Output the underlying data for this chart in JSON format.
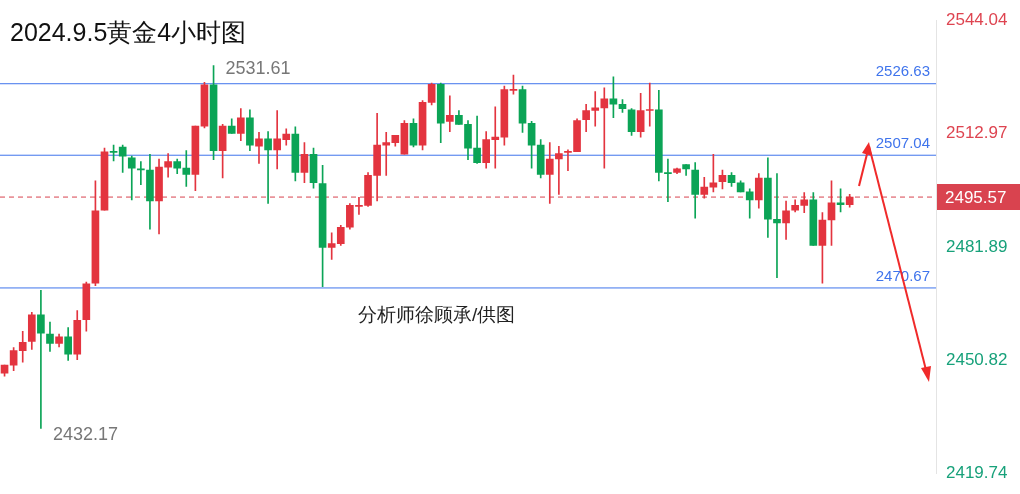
{
  "chart_data": {
    "type": "candlestick",
    "title": "2024.9.5黄金4小时图",
    "categories": [
      null,
      null,
      null,
      null,
      null,
      null,
      null,
      null,
      null,
      null,
      null,
      null,
      null,
      null,
      null,
      null,
      null,
      null,
      null,
      null,
      null,
      null,
      null,
      null,
      null,
      null,
      null,
      null,
      null,
      null,
      null,
      null,
      null,
      null,
      null,
      null,
      null,
      null,
      null,
      null,
      null,
      null,
      null,
      null,
      null,
      null,
      null,
      null,
      null,
      null,
      null,
      null,
      null,
      null,
      null,
      null,
      null,
      null,
      null,
      null,
      null,
      null,
      null,
      null,
      null,
      null,
      null,
      null,
      null,
      null,
      null,
      null,
      null,
      null,
      null,
      null,
      null,
      null,
      null,
      null,
      null,
      null,
      null,
      null,
      null,
      null,
      null,
      null,
      null,
      null,
      null,
      null,
      null,
      null,
      null,
      null,
      null,
      null,
      null,
      null,
      null,
      null,
      null
    ],
    "ohlc": [
      [
        2447.3,
        2449.5,
        2446.5,
        2449.5
      ],
      [
        2449.5,
        2454.3,
        2448.0,
        2453.5
      ],
      [
        2453.5,
        2458.8,
        2450.3,
        2455.8
      ],
      [
        2456.0,
        2464.0,
        2453.8,
        2463.3
      ],
      [
        2463.3,
        2470.0,
        2432.17,
        2458.3
      ],
      [
        2458.0,
        2461.3,
        2453.3,
        2455.5
      ],
      [
        2455.5,
        2458.0,
        2454.5,
        2457.3
      ],
      [
        2457.3,
        2459.8,
        2450.8,
        2452.5
      ],
      [
        2452.5,
        2464.5,
        2451.0,
        2461.8
      ],
      [
        2462.0,
        2472.3,
        2458.8,
        2471.8
      ],
      [
        2472.0,
        2500.0,
        2471.3,
        2491.8
      ],
      [
        2492.0,
        2509.0,
        2492.0,
        2508.0
      ],
      [
        2508.0,
        2509.8,
        2505.5,
        2507.8
      ],
      [
        2509.3,
        2509.8,
        2502.3,
        2506.8
      ],
      [
        2506.3,
        2506.8,
        2494.8,
        2503.5
      ],
      [
        2503.3,
        2505.3,
        2499.0,
        2503.0
      ],
      [
        2503.0,
        2507.3,
        2486.8,
        2494.5
      ],
      [
        2494.5,
        2506.0,
        2485.5,
        2503.8
      ],
      [
        2503.8,
        2507.5,
        2501.0,
        2505.3
      ],
      [
        2505.3,
        2506.0,
        2502.0,
        2503.5
      ],
      [
        2503.5,
        2508.3,
        2498.5,
        2501.8
      ],
      [
        2501.8,
        2515.0,
        2497.3,
        2515.0
      ],
      [
        2515.0,
        2527.0,
        2514.5,
        2526.3
      ],
      [
        2526.3,
        2531.61,
        2505.8,
        2508.3
      ],
      [
        2508.3,
        2515.5,
        2500.8,
        2515.0
      ],
      [
        2515.0,
        2517.0,
        2513.0,
        2513.0
      ],
      [
        2513.0,
        2519.8,
        2511.0,
        2517.3
      ],
      [
        2517.3,
        2519.5,
        2508.3,
        2509.8
      ],
      [
        2509.5,
        2513.3,
        2504.8,
        2511.5
      ],
      [
        2511.5,
        2513.5,
        2493.8,
        2508.5
      ],
      [
        2508.5,
        2519.3,
        2503.3,
        2511.5
      ],
      [
        2511.3,
        2514.3,
        2509.8,
        2512.8
      ],
      [
        2512.8,
        2514.8,
        2500.0,
        2502.3
      ],
      [
        2502.3,
        2510.5,
        2499.5,
        2507.3
      ],
      [
        2507.3,
        2509.0,
        2498.0,
        2499.5
      ],
      [
        2499.3,
        2504.3,
        2471.0,
        2481.8
      ],
      [
        2481.8,
        2485.8,
        2478.5,
        2482.8
      ],
      [
        2482.8,
        2487.8,
        2482.3,
        2487.3
      ],
      [
        2487.3,
        2493.8,
        2486.8,
        2493.3
      ],
      [
        2493.0,
        2495.5,
        2490.8,
        2493.3
      ],
      [
        2493.3,
        2502.3,
        2493.0,
        2501.5
      ],
      [
        2501.5,
        2518.5,
        2494.5,
        2509.8
      ],
      [
        2509.8,
        2513.3,
        2501.5,
        2510.5
      ],
      [
        2510.5,
        2512.5,
        2509.5,
        2512.5
      ],
      [
        2507.3,
        2516.5,
        2507.3,
        2515.8
      ],
      [
        2515.8,
        2517.0,
        2509.3,
        2509.8
      ],
      [
        2509.8,
        2522.0,
        2508.5,
        2521.5
      ],
      [
        2521.5,
        2526.8,
        2520.8,
        2526.5
      ],
      [
        2526.5,
        2526.8,
        2510.5,
        2515.8
      ],
      [
        2516.3,
        2523.3,
        2513.5,
        2518.0
      ],
      [
        2518.0,
        2519.3,
        2515.5,
        2515.5
      ],
      [
        2515.5,
        2516.5,
        2505.8,
        2509.0
      ],
      [
        2509.0,
        2517.8,
        2504.8,
        2505.0
      ],
      [
        2505.0,
        2513.5,
        2503.5,
        2511.3
      ],
      [
        2511.3,
        2520.3,
        2503.5,
        2512.0
      ],
      [
        2512.0,
        2526.0,
        2509.8,
        2525.0
      ],
      [
        2524.8,
        2529.0,
        2523.8,
        2525.0
      ],
      [
        2525.0,
        2526.0,
        2513.3,
        2515.8
      ],
      [
        2515.8,
        2516.3,
        2503.5,
        2509.8
      ],
      [
        2509.8,
        2511.3,
        2500.8,
        2501.8
      ],
      [
        2501.8,
        2510.5,
        2493.8,
        2506.0
      ],
      [
        2506.0,
        2509.5,
        2496.3,
        2507.5
      ],
      [
        2507.8,
        2508.5,
        2502.8,
        2508.0
      ],
      [
        2508.0,
        2517.0,
        2508.0,
        2516.5
      ],
      [
        2516.8,
        2521.0,
        2513.5,
        2519.3
      ],
      [
        2519.3,
        2524.5,
        2515.0,
        2520.0
      ],
      [
        2520.0,
        2525.5,
        2503.5,
        2522.5
      ],
      [
        2522.5,
        2528.5,
        2517.3,
        2521.0
      ],
      [
        2521.0,
        2522.3,
        2518.8,
        2519.8
      ],
      [
        2519.5,
        2519.8,
        2512.5,
        2513.5
      ],
      [
        2513.5,
        2524.0,
        2512.0,
        2519.3
      ],
      [
        2519.3,
        2526.8,
        2515.0,
        2519.5
      ],
      [
        2519.5,
        2524.8,
        2500.0,
        2502.3
      ],
      [
        2502.3,
        2506.0,
        2494.3,
        2502.0
      ],
      [
        2502.3,
        2503.5,
        2502.0,
        2503.3
      ],
      [
        2504.5,
        2504.5,
        2501.5,
        2503.3
      ],
      [
        2503.0,
        2505.0,
        2489.8,
        2496.3
      ],
      [
        2496.3,
        2501.0,
        2495.3,
        2498.3
      ],
      [
        2498.3,
        2507.3,
        2497.0,
        2499.5
      ],
      [
        2499.8,
        2503.0,
        2497.8,
        2501.5
      ],
      [
        2501.5,
        2502.3,
        2498.5,
        2499.5
      ],
      [
        2499.5,
        2500.0,
        2497.0,
        2497.0
      ],
      [
        2497.0,
        2497.8,
        2489.8,
        2494.8
      ],
      [
        2494.8,
        2502.0,
        2492.5,
        2500.8
      ],
      [
        2500.8,
        2506.3,
        2484.5,
        2489.5
      ],
      [
        2489.5,
        2502.0,
        2473.5,
        2488.5
      ],
      [
        2488.5,
        2494.5,
        2484.0,
        2491.8
      ],
      [
        2492.0,
        2494.8,
        2491.5,
        2493.3
      ],
      [
        2493.3,
        2496.8,
        2491.3,
        2494.8
      ],
      [
        2494.8,
        2496.8,
        2482.3,
        2482.3
      ],
      [
        2482.3,
        2491.3,
        2472.0,
        2489.3
      ],
      [
        2489.3,
        2500.0,
        2482.3,
        2494.0
      ],
      [
        2494.0,
        2497.8,
        2491.5,
        2493.5
      ],
      [
        2493.5,
        2496.3,
        2492.8,
        2495.57
      ],
      null,
      null,
      null,
      null,
      null,
      null,
      null,
      null,
      null
    ],
    "colors": [
      "#e3343f",
      "#e3343f",
      "#e3343f",
      "#e3343f",
      "#0ba456",
      "#0ba456",
      "#e3343f",
      "#0ba456",
      "#e3343f",
      "#e3343f",
      "#e3343f",
      "#e3343f",
      "#0ba456",
      "#0ba456",
      "#0ba456",
      "#0ba456",
      "#0ba456",
      "#e3343f",
      "#e3343f",
      "#0ba456",
      "#0ba456",
      "#e3343f",
      "#e3343f",
      "#0ba456",
      "#e3343f",
      "#0ba456",
      "#e3343f",
      "#0ba456",
      "#e3343f",
      "#0ba456",
      "#e3343f",
      "#e3343f",
      "#0ba456",
      "#e3343f",
      "#0ba456",
      "#0ba456",
      "#e3343f",
      "#e3343f",
      "#e3343f",
      "#e3343f",
      "#e3343f",
      "#e3343f",
      "#e3343f",
      "#e3343f",
      "#e3343f",
      "#0ba456",
      "#e3343f",
      "#e3343f",
      "#0ba456",
      "#e3343f",
      "#0ba456",
      "#0ba456",
      "#0ba456",
      "#e3343f",
      "#e3343f",
      "#e3343f",
      "#e3343f",
      "#0ba456",
      "#0ba456",
      "#0ba456",
      "#e3343f",
      "#e3343f",
      "#e3343f",
      "#e3343f",
      "#e3343f",
      "#e3343f",
      "#e3343f",
      "#0ba456",
      "#0ba456",
      "#0ba456",
      "#e3343f",
      "#e3343f",
      "#0ba456",
      "#0ba456",
      "#e3343f",
      "#0ba456",
      "#0ba456",
      "#e3343f",
      "#e3343f",
      "#e3343f",
      "#0ba456",
      "#0ba456",
      "#0ba456",
      "#e3343f",
      "#0ba456",
      "#0ba456",
      "#e3343f",
      "#e3343f",
      "#e3343f",
      "#0ba456",
      "#e3343f",
      "#e3343f",
      "#0ba456",
      "#e3343f",
      null,
      null,
      null,
      null,
      null,
      null,
      null,
      null,
      null
    ],
    "ylim": [
      2419.74,
      2544.04
    ],
    "yticks": [
      2419.74,
      2450.82,
      2481.89,
      2512.97,
      2544.04
    ],
    "grid": false,
    "ref_lines": [
      {
        "axis": "y",
        "value": 2526.63,
        "label": "2526.63",
        "color": "#3f74ec",
        "line_style": "solid"
      },
      {
        "axis": "y",
        "value": 2507.04,
        "label": "2507.04",
        "color": "#3f74ec",
        "line_style": "solid"
      },
      {
        "axis": "y",
        "value": 2470.67,
        "label": "2470.67",
        "color": "#3f74ec",
        "line_style": "solid"
      },
      {
        "axis": "y",
        "value": 2495.57,
        "label": "2495.57",
        "color": "#d9434f",
        "line_style": "dashed"
      }
    ],
    "annotations": [
      "2531.61",
      "2432.17",
      "分析师徐顾承/供图"
    ]
  }
}
